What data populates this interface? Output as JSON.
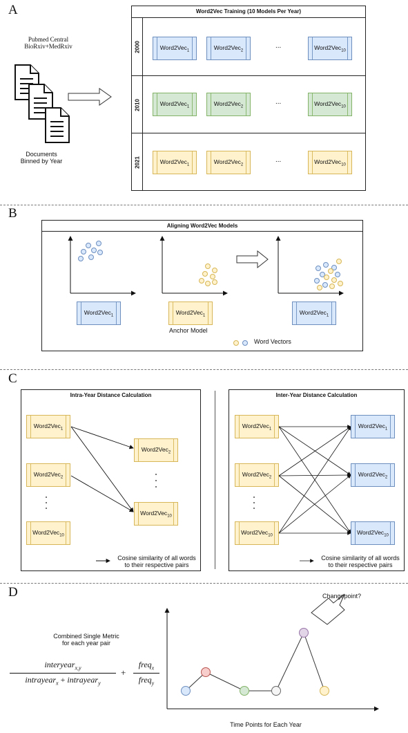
{
  "panel_a": {
    "letter": "A",
    "source_line1": "Pubmed Central",
    "source_line2": "BioRxiv+MedRxiv",
    "docs_line1": "Documents",
    "docs_line2": "Binned by Year",
    "title": "Word2Vec Training (10 Models Per Year)",
    "rows": [
      {
        "year": "2000",
        "color": "#dae8fc",
        "models": [
          "Word2Vec1",
          "Word2Vec2",
          "Word2Vec10"
        ]
      },
      {
        "year": "2010",
        "color": "#d5e8d4",
        "models": [
          "Word2Vec1",
          "Word2Vec2",
          "Word2Vec10"
        ]
      },
      {
        "year": "2021",
        "color": "#fff2cc",
        "models": [
          "Word2Vec1",
          "Word2Vec2",
          "Word2Vec10"
        ]
      }
    ],
    "ellipsis": "..."
  },
  "panel_b": {
    "letter": "B",
    "title": "Aligning Word2Vec Models",
    "model_left": "Word2Vec1",
    "model_anchor": "Word2Vec1",
    "model_right": "Word2Vec1",
    "anchor_label": "Anchor Model",
    "legend_label": "Word Vectors"
  },
  "panel_c": {
    "letter": "C",
    "intra_title": "Intra-Year Distance Calculation",
    "inter_title": "Inter-Year Distance Calculation",
    "intra_left": [
      "Word2Vec1",
      "Word2Vec2",
      "Word2Vec10"
    ],
    "intra_right": [
      "Word2Vec2",
      "Word2Vec10"
    ],
    "inter_left": [
      "Word2Vec1",
      "Word2Vec2",
      "Word2Vec10"
    ],
    "inter_right": [
      "Word2Vec1",
      "Word2Vec2",
      "Word2Vec10"
    ],
    "caption_line1": "Cosine similarity of all words",
    "caption_line2": "to their respective pairs"
  },
  "panel_d": {
    "letter": "D",
    "metric_line1": "Combined Single Metric",
    "metric_line2": "for each year pair",
    "changepoint": "Changepoint?",
    "xlabel": "Time Points for Each Year",
    "formula": {
      "num1": "interyear",
      "num1_sub": "x,y",
      "den1a": "intrayear",
      "den1a_sub": "x",
      "den1b": "intrayear",
      "den1b_sub": "y",
      "num2": "freq",
      "num2_sub": "x",
      "den2": "freq",
      "den2_sub": "y"
    },
    "points": [
      {
        "fill": "#dae8fc",
        "stroke": "#6c8ebf"
      },
      {
        "fill": "#f8cecc",
        "stroke": "#b85450"
      },
      {
        "fill": "#d5e8d4",
        "stroke": "#82b366"
      },
      {
        "fill": "#f5f5f5",
        "stroke": "#666666"
      },
      {
        "fill": "#e1d5e7",
        "stroke": "#9673a6"
      },
      {
        "fill": "#fff2cc",
        "stroke": "#d6b656"
      }
    ]
  }
}
